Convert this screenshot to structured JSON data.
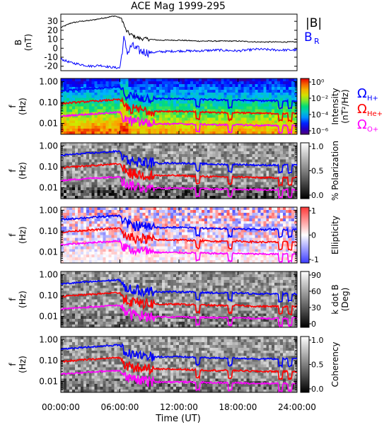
{
  "title": "ACE Mag 1999-295",
  "xlabel": "Time (UT)",
  "x_ticks": [
    "00:00:00",
    "06:00:00",
    "12:00:00",
    "18:00:00",
    "24:00:00"
  ],
  "legend_b": {
    "b_total": "|B|",
    "b_r": "B",
    "b_r_sub": "R"
  },
  "legend_cyclotron": [
    {
      "sym": "Ω",
      "sub": "H+",
      "color": "#0000ff"
    },
    {
      "sym": "Ω",
      "sub": "He+",
      "color": "#ff0000"
    },
    {
      "sym": "Ω",
      "sub": "O+",
      "color": "#ff00ff"
    }
  ],
  "freq_ticks": [
    "1.00",
    "0.10",
    "0.01"
  ],
  "freq_ylabel": [
    "f",
    "(Hz)"
  ],
  "b_panel": {
    "ylabel": [
      "B",
      "(nT)"
    ],
    "y_ticks": [
      "30",
      "20",
      "10",
      "0",
      "-10",
      "-20"
    ]
  },
  "colorbars": [
    {
      "labels": [
        "Intensity",
        "(nT²/Hz)"
      ],
      "ticks": [
        "10⁰",
        "10⁻²",
        "10⁻⁴",
        "10⁻⁶"
      ],
      "scale": "rainbow"
    },
    {
      "labels": [
        "% Polarization"
      ],
      "ticks": [
        "1.0",
        "0.5",
        "0.0"
      ],
      "scale": "gray"
    },
    {
      "labels": [
        "Ellipticity"
      ],
      "ticks": [
        "1",
        "0",
        "-1"
      ],
      "scale": "bwr"
    },
    {
      "labels": [
        "k dot B",
        "(Deg)"
      ],
      "ticks": [
        "90",
        "60",
        "30",
        "0"
      ],
      "scale": "gray"
    },
    {
      "labels": [
        "Coherency"
      ],
      "ticks": [
        "1.0",
        "0.5",
        "0.0"
      ],
      "scale": "gray"
    }
  ],
  "chart_data": {
    "type": "line",
    "title": "ACE Mag 1999-295",
    "xlabel": "Time (UT)",
    "xlim": [
      0,
      24
    ],
    "b_field": {
      "ylim": [
        -25,
        38
      ],
      "series": [
        {
          "name": "|B|",
          "color": "#000000",
          "x": [
            0,
            1,
            2,
            3,
            4,
            5,
            5.5,
            6.2,
            6.6,
            7,
            7.5,
            8,
            9,
            10,
            12,
            14,
            16,
            18,
            20,
            22,
            24
          ],
          "y": [
            23,
            28,
            30,
            31,
            33,
            35,
            36,
            33,
            20,
            16,
            13,
            11,
            10,
            9,
            9,
            8,
            8,
            8,
            7,
            7,
            7
          ]
        },
        {
          "name": "B_R",
          "color": "#0000ff",
          "x": [
            0,
            1,
            2,
            3,
            4,
            5,
            6,
            6.4,
            6.8,
            7.2,
            8,
            9,
            10,
            12,
            14,
            16,
            18,
            20,
            22,
            24
          ],
          "y": [
            -12,
            -16,
            -18,
            -20,
            -19,
            -21,
            -22,
            10,
            -5,
            3,
            -3,
            -5,
            -4,
            -3,
            -3,
            -2,
            -3,
            -1,
            -2,
            -2
          ]
        }
      ]
    },
    "cyclotron_frequencies": {
      "ylim_log": [
        0.003,
        1.4
      ],
      "x": [
        0,
        2,
        4,
        5,
        6,
        6.3,
        6.6,
        7,
        8,
        9,
        10,
        12,
        14,
        16,
        18,
        20,
        22,
        24
      ],
      "series": [
        {
          "name": "Ω_H+",
          "color": "#0000ff",
          "y": [
            0.35,
            0.42,
            0.48,
            0.52,
            0.55,
            0.3,
            0.25,
            0.2,
            0.17,
            0.16,
            0.15,
            0.15,
            0.14,
            0.13,
            0.13,
            0.12,
            0.12,
            0.12
          ]
        },
        {
          "name": "Ω_He+",
          "color": "#ff0000",
          "y": [
            0.088,
            0.105,
            0.12,
            0.13,
            0.138,
            0.075,
            0.062,
            0.05,
            0.043,
            0.04,
            0.038,
            0.038,
            0.035,
            0.033,
            0.033,
            0.03,
            0.03,
            0.03
          ]
        },
        {
          "name": "Ω_O+",
          "color": "#ff00ff",
          "y": [
            0.022,
            0.026,
            0.03,
            0.032,
            0.034,
            0.019,
            0.016,
            0.013,
            0.011,
            0.01,
            0.0095,
            0.0095,
            0.009,
            0.0085,
            0.0085,
            0.008,
            0.008,
            0.008
          ]
        }
      ]
    },
    "spectrogram_panels": [
      "Intensity",
      "% Polarization",
      "Ellipticity",
      "k dot B",
      "Coherency"
    ]
  }
}
